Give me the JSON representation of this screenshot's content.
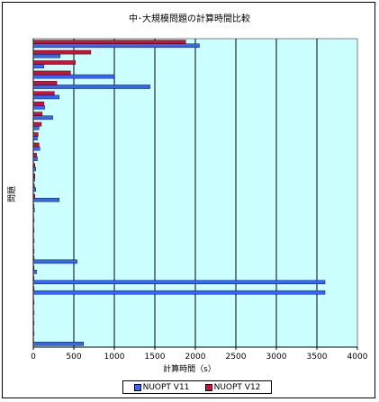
{
  "chart_data": {
    "type": "bar",
    "orientation": "horizontal",
    "title": "中･大規模問題の計算時間比較",
    "xlabel": "計算時間（s）",
    "ylabel": "問題",
    "xlim": [
      0,
      4000
    ],
    "xticks": [
      0,
      500,
      1000,
      1500,
      2000,
      2500,
      3000,
      3500,
      4000
    ],
    "xticklabels": [
      "0",
      "500",
      "1000",
      "1500",
      "2000",
      "2500",
      "3000",
      "3500",
      "4000"
    ],
    "grid": true,
    "legend_position": "bottom",
    "plot_background": "#ccffff",
    "series": [
      {
        "name": "NUOPT V11",
        "color": "#3366ff",
        "values": [
          2050,
          330,
          130,
          1000,
          1440,
          320,
          140,
          240,
          70,
          50,
          80,
          50,
          30,
          20,
          30,
          320,
          15,
          10,
          10,
          10,
          10,
          540,
          40,
          3600,
          3600,
          10,
          10,
          10,
          10,
          620
        ]
      },
      {
        "name": "NUOPT V12",
        "color": "#cc1133",
        "values": [
          1880,
          710,
          520,
          460,
          290,
          260,
          130,
          110,
          100,
          60,
          70,
          40,
          20,
          20,
          15,
          20,
          10,
          5,
          5,
          5,
          5,
          10,
          10,
          10,
          10,
          5,
          5,
          5,
          5,
          5
        ]
      }
    ]
  }
}
